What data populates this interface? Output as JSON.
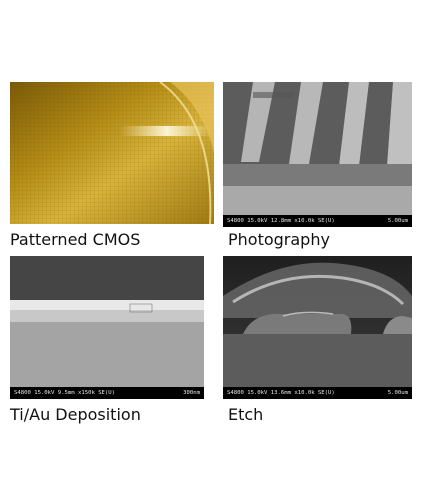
{
  "panels": [
    {
      "caption": "Patterned CMOS",
      "sem": null
    },
    {
      "caption": "Photography",
      "sem": {
        "info": "S4800 15.0kV 12.8mm x10.0k SE(U)",
        "scale": "5.00um"
      }
    },
    {
      "caption": "Ti/Au Deposition",
      "sem": {
        "info": "S4800 15.0kV 9.5mm x150k SE(U)",
        "scale": "300nm"
      }
    },
    {
      "caption": "Etch",
      "sem": {
        "info": "S4800 15.0kV 13.6mm x10.0k SE(U)",
        "scale": "5.00um"
      }
    }
  ],
  "colors": {
    "cmos_gold": "#c9a21c",
    "sem_dark": "#3a3a3a",
    "sem_light": "#d8d8d8"
  }
}
